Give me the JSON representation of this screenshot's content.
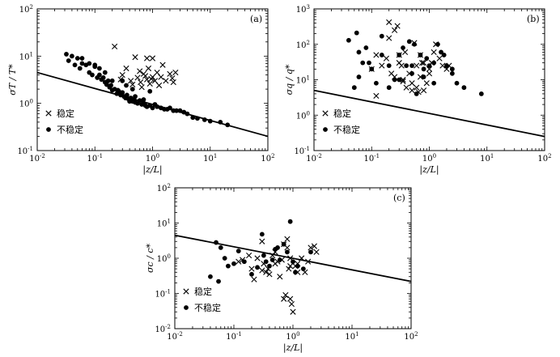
{
  "chart_data": [
    {
      "type": "scatter",
      "panel_label": "(a)",
      "xscale": "log",
      "yscale": "log",
      "xlim": [
        0.01,
        100
      ],
      "ylim": [
        0.1,
        100
      ],
      "xlabel": "|z/L|",
      "ylabel": "σT / T*",
      "legend_position": "bottom-left",
      "series": [
        {
          "name": "稳定",
          "marker": "x",
          "x": [
            0.22,
            0.3,
            0.35,
            0.42,
            0.5,
            0.55,
            0.62,
            0.7,
            0.75,
            0.8,
            0.85,
            0.9,
            0.95,
            1.0,
            1.1,
            1.2,
            1.3,
            1.5,
            1.7,
            2.0,
            2.3,
            2.5,
            0.8,
            1.0,
            2.2,
            0.45,
            0.65,
            1.4,
            0.28,
            0.6
          ],
          "y": [
            16,
            4.0,
            5.5,
            3.0,
            9.5,
            3.5,
            2.8,
            4.2,
            3.8,
            9,
            5.5,
            2.6,
            3.3,
            9,
            3.0,
            4.5,
            2.4,
            6.5,
            3.0,
            4.2,
            2.8,
            4.5,
            3.2,
            3.6,
            3.4,
            2.5,
            2.2,
            3.6,
            3.2,
            4.8
          ]
        },
        {
          "name": "不稳定",
          "marker": "dot",
          "x": [
            0.032,
            0.035,
            0.04,
            0.045,
            0.05,
            0.055,
            0.06,
            0.07,
            0.08,
            0.09,
            0.1,
            0.11,
            0.12,
            0.13,
            0.14,
            0.15,
            0.16,
            0.17,
            0.18,
            0.19,
            0.2,
            0.22,
            0.24,
            0.26,
            0.28,
            0.3,
            0.32,
            0.34,
            0.36,
            0.38,
            0.4,
            0.42,
            0.45,
            0.48,
            0.5,
            0.55,
            0.6,
            0.65,
            0.7,
            0.75,
            0.8,
            0.9,
            1.0,
            1.1,
            1.2,
            1.4,
            1.6,
            1.8,
            2.0,
            2.3,
            2.6,
            3.0,
            3.5,
            4.0,
            5.0,
            6.0,
            8.0,
            10.0,
            15.0,
            20.0,
            0.12,
            0.15,
            0.2,
            0.25,
            0.3,
            0.35,
            0.45,
            0.06,
            0.08,
            0.1,
            0.5,
            0.4,
            0.7,
            0.9
          ],
          "y": [
            11,
            8,
            10,
            6.5,
            9,
            5.5,
            7,
            6.5,
            4.5,
            4.0,
            6,
            3.5,
            4.0,
            3.2,
            3.5,
            2.8,
            2.5,
            3.0,
            2.2,
            2.4,
            1.9,
            2.0,
            1.6,
            1.8,
            1.5,
            1.7,
            1.4,
            1.3,
            1.5,
            1.25,
            1.2,
            1.3,
            1.1,
            1.2,
            1.05,
            1.0,
            1.15,
            0.95,
            1.0,
            0.9,
            0.85,
            0.9,
            0.8,
            0.95,
            0.85,
            0.8,
            0.75,
            0.75,
            0.8,
            0.7,
            0.7,
            0.7,
            0.65,
            0.6,
            0.5,
            0.48,
            0.45,
            0.42,
            0.4,
            0.35,
            5.5,
            4.5,
            3.0,
            1.9,
            3.0,
            2.4,
            2.0,
            9,
            7,
            6.5,
            1.4,
            1.1,
            1.2,
            1.8
          ]
        }
      ],
      "fit_line": {
        "x": [
          0.01,
          100
        ],
        "y": [
          4.5,
          0.2
        ]
      }
    },
    {
      "type": "scatter",
      "panel_label": "(b)",
      "xscale": "log",
      "yscale": "log",
      "xlim": [
        0.01,
        100
      ],
      "ylim": [
        0.1,
        1000
      ],
      "xlabel": "|z/L|",
      "ylabel": "σq / q*",
      "legend_position": "bottom-left",
      "series": [
        {
          "name": "稳定",
          "marker": "x",
          "x": [
            0.1,
            0.12,
            0.15,
            0.18,
            0.2,
            0.22,
            0.25,
            0.28,
            0.3,
            0.33,
            0.35,
            0.38,
            0.4,
            0.45,
            0.5,
            0.55,
            0.6,
            0.65,
            0.7,
            0.75,
            0.8,
            0.9,
            1.0,
            1.1,
            1.2,
            1.3,
            1.5,
            1.7,
            2.0,
            2.2,
            0.2,
            0.25,
            0.3,
            0.35,
            0.5,
            0.6,
            0.7,
            0.8,
            1.0,
            0.12
          ],
          "y": [
            20,
            3.5,
            25,
            40,
            420,
            15,
            12,
            330,
            30,
            25,
            9,
            60,
            6,
            15,
            8,
            110,
            6,
            4.5,
            12,
            30,
            5,
            8,
            20,
            30,
            60,
            100,
            40,
            25,
            20,
            25,
            150,
            250,
            50,
            10,
            5,
            25,
            50,
            30,
            15,
            50
          ]
        },
        {
          "name": "不稳定",
          "marker": "dot",
          "x": [
            0.04,
            0.05,
            0.055,
            0.06,
            0.07,
            0.08,
            0.1,
            0.12,
            0.15,
            0.2,
            0.25,
            0.3,
            0.35,
            0.4,
            0.45,
            0.5,
            0.55,
            0.6,
            0.7,
            0.8,
            0.9,
            1.0,
            1.2,
            1.4,
            1.6,
            1.8,
            2.0,
            2.5,
            3.0,
            4.0,
            8.0,
            0.06,
            0.09,
            0.15,
            0.3,
            0.5,
            0.8,
            1.2,
            2.5,
            0.2
          ],
          "y": [
            130,
            6,
            210,
            60,
            30,
            80,
            20,
            8,
            170,
            25,
            10,
            50,
            80,
            25,
            120,
            15,
            100,
            4,
            50,
            20,
            40,
            25,
            30,
            100,
            60,
            50,
            25,
            20,
            8,
            6,
            4,
            12,
            30,
            50,
            10,
            25,
            12,
            8,
            15,
            6
          ]
        }
      ],
      "fit_line": {
        "x": [
          0.01,
          100
        ],
        "y": [
          5,
          0.25
        ]
      }
    },
    {
      "type": "scatter",
      "panel_label": "(c)",
      "xscale": "log",
      "yscale": "log",
      "xlim": [
        0.01,
        100
      ],
      "ylim": [
        0.01,
        100
      ],
      "xlabel": "|z/L|",
      "ylabel": "σc / c*",
      "legend_position": "bottom-left",
      "series": [
        {
          "name": "稳定",
          "marker": "x",
          "x": [
            0.12,
            0.14,
            0.18,
            0.2,
            0.22,
            0.25,
            0.3,
            0.32,
            0.35,
            0.38,
            0.4,
            0.45,
            0.5,
            0.55,
            0.6,
            0.65,
            0.7,
            0.75,
            0.8,
            0.85,
            0.9,
            0.95,
            1.0,
            1.1,
            1.2,
            1.4,
            1.6,
            1.8,
            2.0,
            2.3,
            2.5,
            0.7,
            0.8,
            0.9,
            0.9,
            0.3,
            0.5,
            1.2
          ],
          "y": [
            0.8,
            0.9,
            1.2,
            0.5,
            0.25,
            1.0,
            3.0,
            0.7,
            0.4,
            0.5,
            0.35,
            1.2,
            0.7,
            0.8,
            0.3,
            0.9,
            0.07,
            0.09,
            2.0,
            0.5,
            0.07,
            0.05,
            0.03,
            0.6,
            0.4,
            1.0,
            0.4,
            0.8,
            2.0,
            2.2,
            1.5,
            2.5,
            3.5,
            1.0,
            0.6,
            0.45,
            1.5,
            0.7
          ]
        },
        {
          "name": "不稳定",
          "marker": "dot",
          "x": [
            0.04,
            0.05,
            0.055,
            0.06,
            0.07,
            0.08,
            0.1,
            0.12,
            0.15,
            0.2,
            0.25,
            0.3,
            0.32,
            0.35,
            0.4,
            0.45,
            0.5,
            0.55,
            0.6,
            0.7,
            0.8,
            0.9,
            1.0,
            1.1,
            1.2,
            1.5,
            2.0
          ],
          "y": [
            0.3,
            2.8,
            0.22,
            2.0,
            1.0,
            0.6,
            0.7,
            1.6,
            0.8,
            0.35,
            0.55,
            4.8,
            1.2,
            0.8,
            0.6,
            0.9,
            1.8,
            2.0,
            0.9,
            2.5,
            1.5,
            11,
            0.8,
            0.4,
            0.6,
            0.5,
            1.5
          ]
        }
      ],
      "fit_line": {
        "x": [
          0.01,
          100
        ],
        "y": [
          4.5,
          0.22
        ]
      }
    }
  ]
}
